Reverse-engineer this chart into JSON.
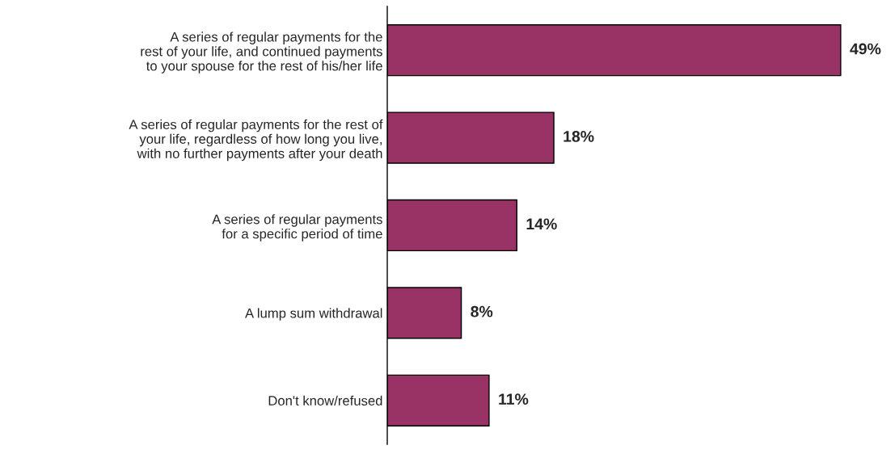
{
  "chart_data": {
    "type": "bar",
    "orientation": "horizontal",
    "categories": [
      "A series of regular payments for the\nrest of your life, and continued payments\nto your spouse for the rest of his/her life",
      "A series of regular payments for the rest of\nyour life, regardless of how long you live,\nwith no further payments after your death",
      "A series of regular payments\nfor a specific period of time",
      "A lump sum withdrawal",
      "Don't know/refused"
    ],
    "values": [
      49,
      18,
      14,
      8,
      11
    ],
    "value_labels": [
      "49%",
      "18%",
      "14%",
      "8%",
      "11%"
    ],
    "color": "#993366",
    "tick_labels": "y",
    "grid": false,
    "legend": false
  }
}
